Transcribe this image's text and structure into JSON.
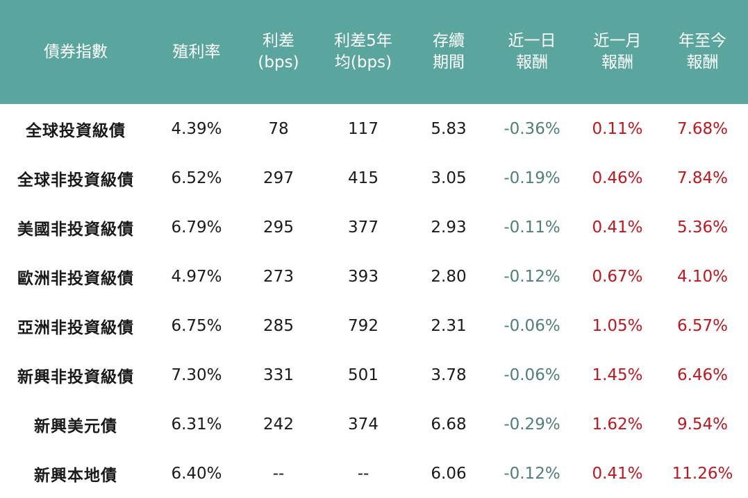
{
  "table": {
    "header_color": "#5aa59d",
    "negative_color": "#4f7f79",
    "positive_color": "#c0161e",
    "headers": [
      [
        "債券指數"
      ],
      [
        "殖利率"
      ],
      [
        "利差",
        "(bps)"
      ],
      [
        "利差5年",
        "均(bps)"
      ],
      [
        "存續",
        "期間"
      ],
      [
        "近一日",
        "報酬"
      ],
      [
        "近一月",
        "報酬"
      ],
      [
        "年至今",
        "報酬"
      ]
    ],
    "rows": [
      {
        "name": "全球投資級債",
        "yield": "4.39%",
        "spread": "78",
        "spread5y": "117",
        "duration": "5.83",
        "d1": "-0.36%",
        "m1": "0.11%",
        "ytd": "7.68%"
      },
      {
        "name": "全球非投資級債",
        "yield": "6.52%",
        "spread": "297",
        "spread5y": "415",
        "duration": "3.05",
        "d1": "-0.19%",
        "m1": "0.46%",
        "ytd": "7.84%"
      },
      {
        "name": "美國非投資級債",
        "yield": "6.79%",
        "spread": "295",
        "spread5y": "377",
        "duration": "2.93",
        "d1": "-0.11%",
        "m1": "0.41%",
        "ytd": "5.36%"
      },
      {
        "name": "歐洲非投資級債",
        "yield": "4.97%",
        "spread": "273",
        "spread5y": "393",
        "duration": "2.80",
        "d1": "-0.12%",
        "m1": "0.67%",
        "ytd": "4.10%"
      },
      {
        "name": "亞洲非投資級債",
        "yield": "6.75%",
        "spread": "285",
        "spread5y": "792",
        "duration": "2.31",
        "d1": "-0.06%",
        "m1": "1.05%",
        "ytd": "6.57%"
      },
      {
        "name": "新興非投資級債",
        "yield": "7.30%",
        "spread": "331",
        "spread5y": "501",
        "duration": "3.78",
        "d1": "-0.06%",
        "m1": "1.45%",
        "ytd": "6.46%"
      },
      {
        "name": "新興美元債",
        "yield": "6.31%",
        "spread": "242",
        "spread5y": "374",
        "duration": "6.68",
        "d1": "-0.29%",
        "m1": "1.62%",
        "ytd": "9.54%"
      },
      {
        "name": "新興本地債",
        "yield": "6.40%",
        "spread": "--",
        "spread5y": "--",
        "duration": "6.06",
        "d1": "-0.12%",
        "m1": "0.41%",
        "ytd": "11.26%"
      }
    ]
  }
}
